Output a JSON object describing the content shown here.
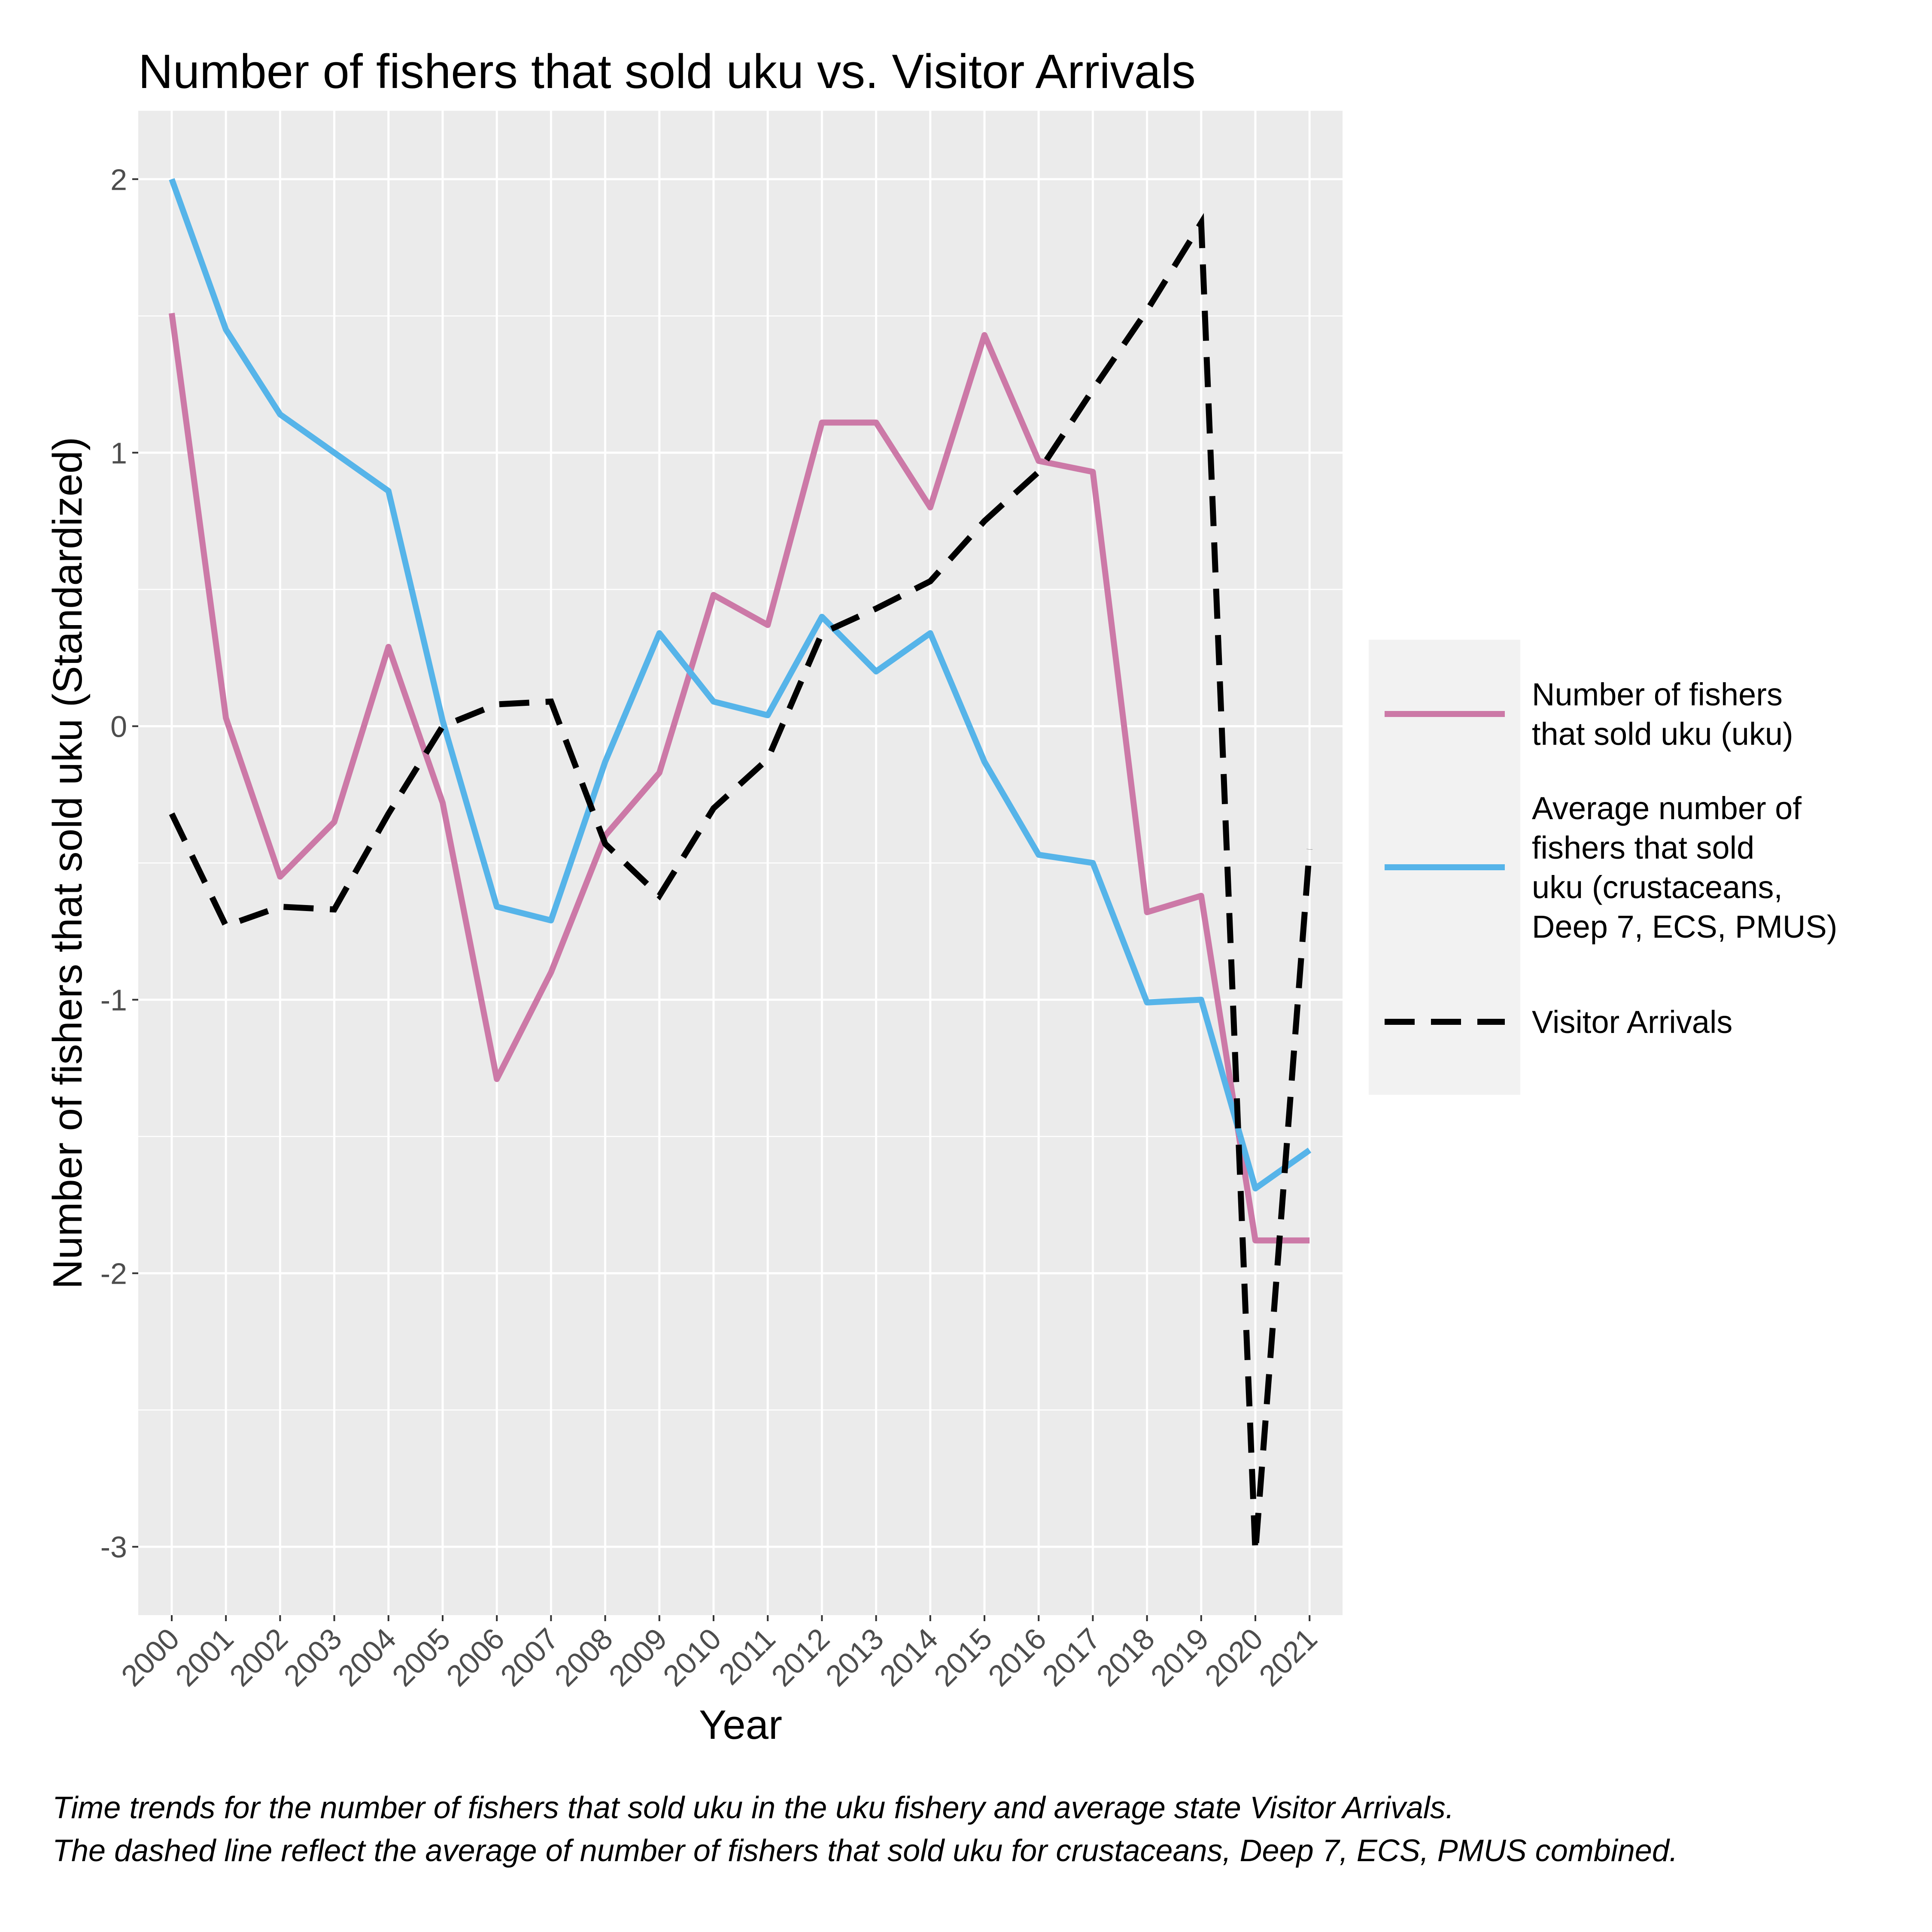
{
  "chart_data": {
    "type": "line",
    "title": "Number of fishers that sold uku vs. Visitor Arrivals",
    "xlabel": "Year",
    "ylabel": "Number of fishers that sold uku (Standardized)",
    "x": [
      "2000",
      "2001",
      "2002",
      "2003",
      "2004",
      "2005",
      "2006",
      "2007",
      "2008",
      "2009",
      "2010",
      "2011",
      "2012",
      "2013",
      "2014",
      "2015",
      "2016",
      "2017",
      "2018",
      "2019",
      "2020",
      "2021"
    ],
    "yticks": [
      "2",
      "1",
      "0",
      "-1",
      "-2",
      "-3"
    ],
    "ylim": [
      -3.25,
      2.25
    ],
    "grid": true,
    "legend_position": "right",
    "series": [
      {
        "name": "Number of fishers that sold uku (uku)",
        "name_lines": [
          "Number of fishers",
          "that sold uku (uku)"
        ],
        "color": "#CC79A7",
        "style": "solid",
        "values": [
          1.51,
          0.03,
          -0.55,
          -0.35,
          0.29,
          -0.28,
          -1.29,
          -0.9,
          -0.4,
          -0.17,
          0.48,
          0.37,
          1.11,
          1.11,
          0.8,
          1.43,
          0.97,
          0.93,
          -0.68,
          -0.62,
          -1.88,
          -1.88
        ]
      },
      {
        "name": "Average number of fishers that sold uku (crustaceans, Deep 7, ECS, PMUS)",
        "name_lines": [
          "Average number of",
          "fishers that sold",
          "uku (crustaceans,",
          "Deep 7, ECS, PMUS)"
        ],
        "color": "#56B4E9",
        "style": "solid",
        "values": [
          2.0,
          1.45,
          1.14,
          1.0,
          0.86,
          0.02,
          -0.66,
          -0.71,
          -0.13,
          0.34,
          0.09,
          0.04,
          0.4,
          0.2,
          0.34,
          -0.13,
          -0.47,
          -0.5,
          -1.01,
          -1.0,
          -1.69,
          -1.55
        ]
      },
      {
        "name": "Visitor Arrivals",
        "name_lines": [
          "Visitor Arrivals"
        ],
        "color": "#000000",
        "style": "dashed",
        "values": [
          -0.32,
          -0.73,
          -0.66,
          -0.67,
          -0.32,
          0.0,
          0.08,
          0.09,
          -0.43,
          -0.62,
          -0.3,
          -0.12,
          0.34,
          0.43,
          0.53,
          0.75,
          0.93,
          1.23,
          1.52,
          1.84,
          -3.02,
          -0.45
        ]
      }
    ],
    "caption": [
      "Time trends for the number of fishers that sold uku in the uku fishery and average state Visitor Arrivals.",
      " The dashed line reflect the average of number of fishers that sold uku for crustaceans, Deep 7, ECS, PMUS combined."
    ]
  }
}
